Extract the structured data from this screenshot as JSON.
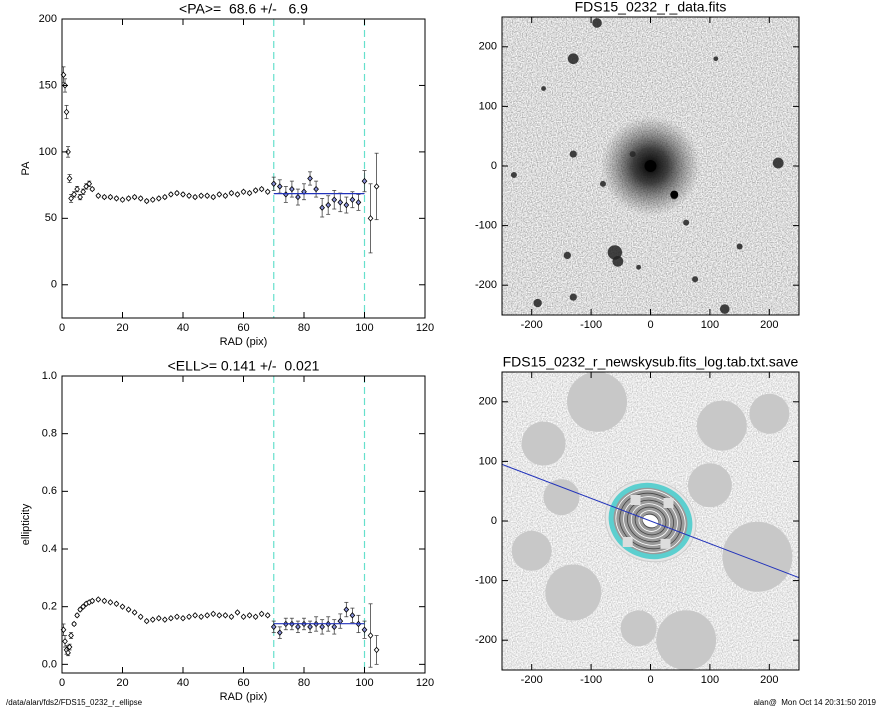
{
  "chart_data": [
    {
      "type": "scatter",
      "title": "<PA>=  68.6 +/-   6.9",
      "x_label": "RAD (pix)",
      "y_label": "PA",
      "x": [
        0.5,
        1,
        1.5,
        2,
        2.5,
        3,
        4,
        5,
        6,
        7,
        8,
        9,
        10,
        12,
        14,
        16,
        18,
        20,
        22,
        24,
        26,
        28,
        30,
        32,
        34,
        36,
        38,
        40,
        42,
        44,
        46,
        48,
        50,
        52,
        54,
        56,
        58,
        60,
        62,
        64,
        66,
        68,
        70,
        72,
        74,
        76,
        78,
        80,
        82,
        84,
        86,
        88,
        90,
        92,
        94,
        96,
        98,
        100,
        102,
        104
      ],
      "values": [
        158,
        150,
        130,
        100,
        80,
        65,
        68,
        72,
        66,
        70,
        74,
        76,
        72,
        67,
        66,
        66,
        65,
        64,
        65,
        66,
        65,
        63,
        64,
        65,
        66,
        68,
        69,
        68,
        67,
        66,
        67,
        67,
        66,
        68,
        67,
        69,
        68,
        70,
        69,
        71,
        72,
        70,
        76,
        74,
        68,
        72,
        66,
        70,
        80,
        72,
        58,
        60,
        64,
        62,
        60,
        64,
        62,
        78,
        50,
        74
      ],
      "errors": [
        6,
        5,
        5,
        4,
        3,
        3,
        2,
        2,
        2,
        2,
        2,
        2,
        1,
        1,
        1,
        1,
        1,
        1,
        1,
        1,
        1,
        1,
        1,
        1,
        1,
        1,
        1,
        1,
        1,
        1,
        1,
        1,
        1,
        1,
        1,
        1,
        1,
        1,
        1,
        1,
        1,
        1,
        5,
        5,
        6,
        6,
        6,
        6,
        5,
        6,
        7,
        7,
        7,
        7,
        6,
        6,
        6,
        8,
        26,
        25
      ],
      "color": "#000000",
      "fit": {
        "x": [
          70,
          100
        ],
        "value": 68.6,
        "color": "#2233bb"
      },
      "vlines": [
        70,
        100
      ],
      "vline_color": "#66e0cc",
      "xlim": [
        0,
        120
      ],
      "xticks": [
        0,
        20,
        40,
        60,
        80,
        100,
        120
      ],
      "ylim": [
        -25,
        200
      ],
      "yticks": [
        0,
        50,
        100,
        150,
        200
      ]
    },
    {
      "type": "image",
      "title": "FDS15_0232_r_data.fits",
      "xlim": [
        -250,
        250
      ],
      "xticks": [
        -200,
        -100,
        0,
        100,
        200
      ],
      "ylim": [
        -250,
        250
      ],
      "yticks": [
        -200,
        -100,
        0,
        100,
        200
      ]
    },
    {
      "type": "scatter",
      "title": "<ELL>= 0.141 +/-  0.021",
      "x_label": "RAD (pix)",
      "y_label": "ellipticity",
      "x": [
        0.5,
        1,
        1.5,
        2,
        2.5,
        3,
        4,
        5,
        6,
        7,
        8,
        9,
        10,
        12,
        14,
        16,
        18,
        20,
        22,
        24,
        26,
        28,
        30,
        32,
        34,
        36,
        38,
        40,
        42,
        44,
        46,
        48,
        50,
        52,
        54,
        56,
        58,
        60,
        62,
        64,
        66,
        68,
        70,
        72,
        74,
        76,
        78,
        80,
        82,
        84,
        86,
        88,
        90,
        92,
        94,
        96,
        98,
        100,
        102,
        104
      ],
      "values": [
        0.12,
        0.08,
        0.05,
        0.04,
        0.06,
        0.1,
        0.14,
        0.17,
        0.19,
        0.2,
        0.21,
        0.215,
        0.22,
        0.225,
        0.22,
        0.215,
        0.21,
        0.2,
        0.19,
        0.18,
        0.165,
        0.15,
        0.155,
        0.16,
        0.155,
        0.16,
        0.165,
        0.16,
        0.165,
        0.17,
        0.165,
        0.17,
        0.175,
        0.17,
        0.17,
        0.165,
        0.18,
        0.165,
        0.17,
        0.165,
        0.175,
        0.17,
        0.13,
        0.11,
        0.14,
        0.14,
        0.13,
        0.14,
        0.13,
        0.14,
        0.13,
        0.14,
        0.13,
        0.15,
        0.19,
        0.17,
        0.14,
        0.12,
        0.1,
        0.05
      ],
      "errors": [
        0.02,
        0.02,
        0.015,
        0.01,
        0.01,
        0.01,
        0.005,
        0.005,
        0.005,
        0.005,
        0.005,
        0.005,
        0.005,
        0.004,
        0.004,
        0.004,
        0.004,
        0.004,
        0.004,
        0.004,
        0.004,
        0.004,
        0.004,
        0.004,
        0.004,
        0.004,
        0.004,
        0.004,
        0.004,
        0.004,
        0.004,
        0.004,
        0.004,
        0.004,
        0.004,
        0.004,
        0.004,
        0.004,
        0.004,
        0.004,
        0.004,
        0.004,
        0.02,
        0.02,
        0.02,
        0.02,
        0.02,
        0.02,
        0.02,
        0.025,
        0.025,
        0.025,
        0.025,
        0.025,
        0.025,
        0.025,
        0.03,
        0.03,
        0.11,
        0.05
      ],
      "color": "#000000",
      "fit": {
        "x": [
          70,
          100
        ],
        "value": 0.141,
        "color": "#2233bb"
      },
      "vlines": [
        70,
        100
      ],
      "vline_color": "#66e0cc",
      "xlim": [
        0,
        120
      ],
      "xticks": [
        0,
        20,
        40,
        60,
        80,
        100,
        120
      ],
      "ylim": [
        -0.03,
        1.0
      ],
      "yticks": [
        {
          "value": 0,
          "label": "0.0"
        },
        {
          "value": 0.2,
          "label": "0.2"
        },
        {
          "value": 0.4,
          "label": "0.4"
        },
        {
          "value": 0.6,
          "label": "0.6"
        },
        {
          "value": 0.8,
          "label": "0.8"
        },
        {
          "value": 1,
          "label": "1.0"
        }
      ]
    },
    {
      "type": "image",
      "title": "FDS15_0232_r_newskysub.fits_log.tab.txt.save",
      "line": {
        "x": [
          -250,
          250
        ],
        "y": [
          95,
          -95
        ],
        "color": "#2233bb"
      },
      "xlim": [
        -250,
        250
      ],
      "xticks": [
        -200,
        -100,
        0,
        100,
        200
      ],
      "ylim": [
        -250,
        250
      ],
      "yticks": [
        -200,
        -100,
        0,
        100,
        200
      ]
    }
  ],
  "footer_left": "/data/alan/fds2/FDS15_0232_r_ellipse",
  "footer_right": "alan@  Mon Oct 14 20:31:50 2019"
}
